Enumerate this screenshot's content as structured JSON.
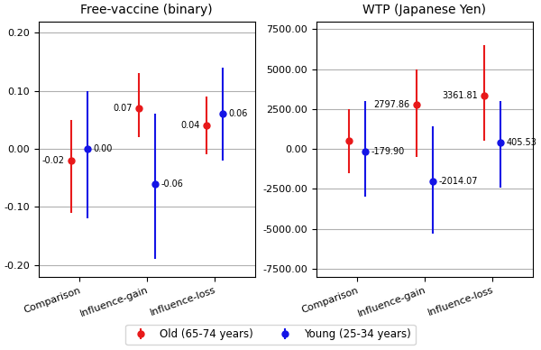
{
  "chart_data": [
    {
      "type": "scatter",
      "title": "Free-vaccine (binary)",
      "categories": [
        "Comparison",
        "Influence-gain",
        "Influence-loss"
      ],
      "series": [
        {
          "name": "Old (65-74 years)",
          "color": "#e8191a",
          "values": [
            -0.02,
            0.07,
            0.04
          ],
          "value_labels": [
            "-0.02",
            "0.07",
            "0.04"
          ],
          "ci_lo": [
            -0.11,
            0.02,
            -0.01
          ],
          "ci_hi": [
            0.05,
            0.13,
            0.09
          ]
        },
        {
          "name": "Young (25-34 years)",
          "color": "#1414e6",
          "values": [
            0.0,
            -0.06,
            0.06
          ],
          "value_labels": [
            "0.00",
            "-0.06",
            "0.06"
          ],
          "ci_lo": [
            -0.12,
            -0.19,
            -0.02
          ],
          "ci_hi": [
            0.1,
            0.06,
            0.14
          ]
        }
      ],
      "ylim": [
        -0.22,
        0.22
      ],
      "yticks": [
        {
          "value": -0.2,
          "label": "-0.20"
        },
        {
          "value": -0.1,
          "label": "-0.10"
        },
        {
          "value": 0.0,
          "label": "0.00"
        },
        {
          "value": 0.1,
          "label": "0.10"
        },
        {
          "value": 0.2,
          "label": "0.20"
        }
      ],
      "grid": true,
      "legend": "lower center",
      "data_labels": true
    },
    {
      "type": "scatter",
      "title": "WTP (Japanese Yen)",
      "categories": [
        "Comparison",
        "Influence-gain",
        "Influence-loss"
      ],
      "series": [
        {
          "name": "Old (65-74 years)",
          "color": "#e8191a",
          "values": [
            522.86,
            2797.86,
            3361.81
          ],
          "value_labels": [
            null,
            "2797.86",
            "3361.81"
          ],
          "ci_lo": [
            -1500,
            -500,
            500
          ],
          "ci_hi": [
            2500,
            5000,
            6500
          ]
        },
        {
          "name": "Young (25-34 years)",
          "color": "#1414e6",
          "values": [
            -179.9,
            -2014.07,
            405.53
          ],
          "value_labels": [
            "-179.90",
            "-2014.07",
            "405.53"
          ],
          "ci_lo": [
            -3000,
            -5300,
            -2400
          ],
          "ci_hi": [
            3000,
            1400,
            3000
          ]
        }
      ],
      "ylim": [
        -8000,
        8000
      ],
      "yticks": [
        {
          "value": -7500,
          "label": "-7500.00"
        },
        {
          "value": -5000,
          "label": "-5000.00"
        },
        {
          "value": -2500,
          "label": "-2500.00"
        },
        {
          "value": 0,
          "label": "0.00"
        },
        {
          "value": 2500,
          "label": "2500.00"
        },
        {
          "value": 5000,
          "label": "5000.00"
        },
        {
          "value": 7500,
          "label": "7500.00"
        }
      ],
      "grid": true,
      "legend": "lower center",
      "data_labels": true
    }
  ]
}
